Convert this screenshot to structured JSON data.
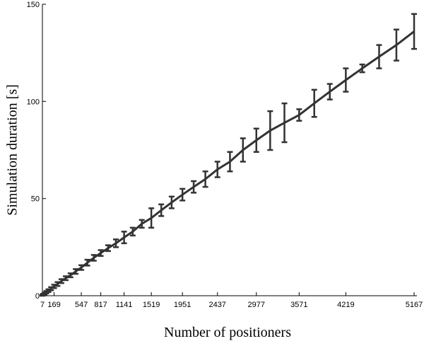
{
  "chart_data": {
    "type": "line",
    "xlabel": "Number of positioners",
    "ylabel": "Simulation duration [s]",
    "x": [
      7,
      19,
      37,
      61,
      91,
      127,
      169,
      217,
      271,
      331,
      397,
      469,
      547,
      631,
      721,
      817,
      919,
      1027,
      1141,
      1261,
      1387,
      1519,
      1657,
      1801,
      1951,
      2107,
      2269,
      2437,
      2611,
      2791,
      2977,
      3169,
      3367,
      3571,
      3781,
      3997,
      4219,
      4447,
      4681,
      4921,
      5167
    ],
    "series": [
      {
        "name": "Simulation duration",
        "color": "#333333",
        "values": [
          0.3,
          0.6,
          1.1,
          1.8,
          2.6,
          3.6,
          4.8,
          6,
          7.5,
          9,
          10.5,
          12.5,
          14.5,
          17,
          19.5,
          22,
          24.5,
          27,
          30,
          33,
          37,
          40,
          44,
          48,
          52,
          56,
          60,
          65,
          69,
          75,
          80,
          85,
          89,
          93,
          99,
          105,
          111,
          117,
          123,
          129,
          136
        ],
        "errors": [
          0.3,
          0.4,
          0.5,
          0.6,
          0.7,
          0.8,
          0.9,
          1,
          1,
          1,
          1,
          1.2,
          1.2,
          1.5,
          1.5,
          1.5,
          1.5,
          2,
          3,
          2,
          2,
          5,
          3,
          3,
          3,
          3,
          4,
          4,
          5,
          6,
          6,
          10,
          10,
          3,
          7,
          4,
          6,
          2,
          6,
          8,
          9
        ]
      }
    ],
    "xlim": [
      7,
      5167
    ],
    "xticks": [
      7,
      169,
      547,
      817,
      1141,
      1519,
      1951,
      2437,
      2977,
      3571,
      4219,
      5167
    ],
    "ylim": [
      0,
      150
    ],
    "yticks": [
      0,
      50,
      100,
      150
    ]
  }
}
